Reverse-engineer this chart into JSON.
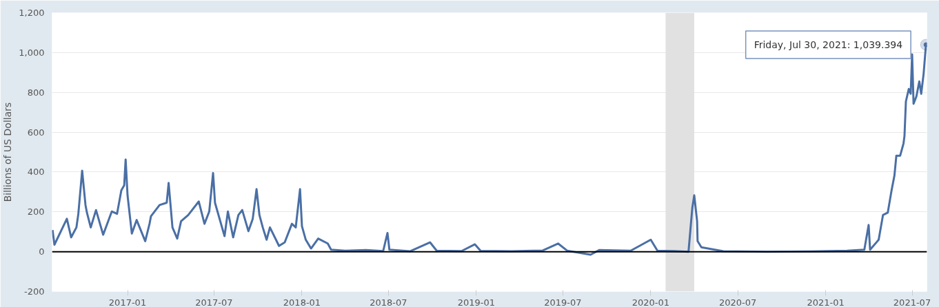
{
  "chart_data": {
    "type": "line",
    "ylabel": "Billions of US Dollars",
    "x": [
      "2016-07-28",
      "2016-08-01",
      "2016-08-27",
      "2016-09-05",
      "2016-09-16",
      "2016-09-20",
      "2016-09-28",
      "2016-10-05",
      "2016-10-08",
      "2016-10-16",
      "2016-10-27",
      "2016-11-11",
      "2016-11-29",
      "2016-12-10",
      "2016-12-19",
      "2016-12-25",
      "2016-12-28",
      "2017-01-01",
      "2017-01-10",
      "2017-01-20",
      "2017-02-07",
      "2017-02-16",
      "2017-02-19",
      "2017-03-09",
      "2017-03-24",
      "2017-03-28",
      "2017-04-05",
      "2017-04-15",
      "2017-04-23",
      "2017-05-08",
      "2017-05-30",
      "2017-06-11",
      "2017-06-21",
      "2017-06-29",
      "2017-07-03",
      "2017-07-23",
      "2017-07-30",
      "2017-08-10",
      "2017-08-21",
      "2017-08-29",
      "2017-09-11",
      "2017-09-20",
      "2017-09-28",
      "2017-10-04",
      "2017-10-11",
      "2017-10-19",
      "2017-10-26",
      "2017-11-14",
      "2017-11-26",
      "2017-12-11",
      "2017-12-19",
      "2017-12-28",
      "2018-01-01",
      "2018-01-09",
      "2018-01-20",
      "2018-02-04",
      "2018-02-24",
      "2018-03-03",
      "2018-04-01",
      "2018-05-15",
      "2018-06-20",
      "2018-06-29",
      "2018-07-03",
      "2018-08-15",
      "2018-09-26",
      "2018-10-10",
      "2018-12-01",
      "2018-12-29",
      "2019-01-10",
      "2019-03-15",
      "2019-05-20",
      "2019-06-21",
      "2019-07-10",
      "2019-08-28",
      "2019-09-15",
      "2019-11-20",
      "2020-01-01",
      "2020-01-15",
      "2020-02-20",
      "2020-03-20",
      "2020-03-28",
      "2020-04-01",
      "2020-04-07",
      "2020-04-08",
      "2020-04-16",
      "2020-06-01",
      "2020-09-01",
      "2020-12-01",
      "2021-02-15",
      "2021-03-23",
      "2021-04-01",
      "2021-04-04",
      "2021-04-22",
      "2021-05-01",
      "2021-05-11",
      "2021-05-19",
      "2021-05-25",
      "2021-05-29",
      "2021-06-06",
      "2021-06-13",
      "2021-06-15",
      "2021-06-18",
      "2021-06-24",
      "2021-06-28",
      "2021-07-01",
      "2021-07-04",
      "2021-07-10",
      "2021-07-16",
      "2021-07-20",
      "2021-07-25",
      "2021-07-30"
    ],
    "series": [
      {
        "color": "#4a6fa5",
        "values": [
          109,
          35,
          165,
          72,
          122,
          190,
          407,
          234,
          196,
          122,
          209,
          85,
          202,
          190,
          308,
          333,
          463,
          283,
          91,
          159,
          53,
          140,
          178,
          234,
          246,
          345,
          122,
          66,
          153,
          184,
          252,
          140,
          202,
          395,
          246,
          78,
          202,
          72,
          184,
          209,
          103,
          165,
          314,
          184,
          122,
          60,
          122,
          29,
          47,
          140,
          122,
          314,
          128,
          60,
          16,
          66,
          41,
          10,
          5,
          8,
          3,
          94,
          10,
          2,
          47,
          5,
          3,
          37,
          4,
          2,
          6,
          41,
          5,
          -15,
          8,
          5,
          60,
          5,
          3,
          0,
          221,
          283,
          153,
          53,
          22,
          2,
          0,
          1,
          5,
          10,
          134,
          10,
          60,
          184,
          196,
          308,
          383,
          482,
          482,
          544,
          581,
          755,
          817,
          793,
          991,
          743,
          780,
          855,
          793,
          892,
          1039.394
        ]
      }
    ],
    "xlim": [
      "2016-07-27",
      "2021-08-01"
    ],
    "xticks": [
      "2017-01",
      "2017-07",
      "2018-01",
      "2018-07",
      "2019-01",
      "2019-07",
      "2020-01",
      "2020-07",
      "2021-01",
      "2021-07"
    ],
    "ylim": [
      -200,
      1200
    ],
    "yticks": [
      -200,
      0,
      200,
      400,
      600,
      800,
      {
        "value": 1000,
        "label": "1,000"
      },
      {
        "value": 1200,
        "label": "1,200"
      }
    ],
    "grid": "y",
    "marker": "none",
    "line_style": "solid",
    "ref_lines": [
      {
        "axis": "y",
        "value": 0,
        "color": "#000000"
      }
    ],
    "bands": [
      {
        "axis": "x",
        "from": "2020-02-01",
        "to": "2020-04-01",
        "color": "#e1e1e1"
      }
    ],
    "annotations": [
      {
        "text": "Friday, Jul 30, 2021: 1,039.394",
        "x": "2021-07-30",
        "y": 1039.394
      }
    ]
  }
}
